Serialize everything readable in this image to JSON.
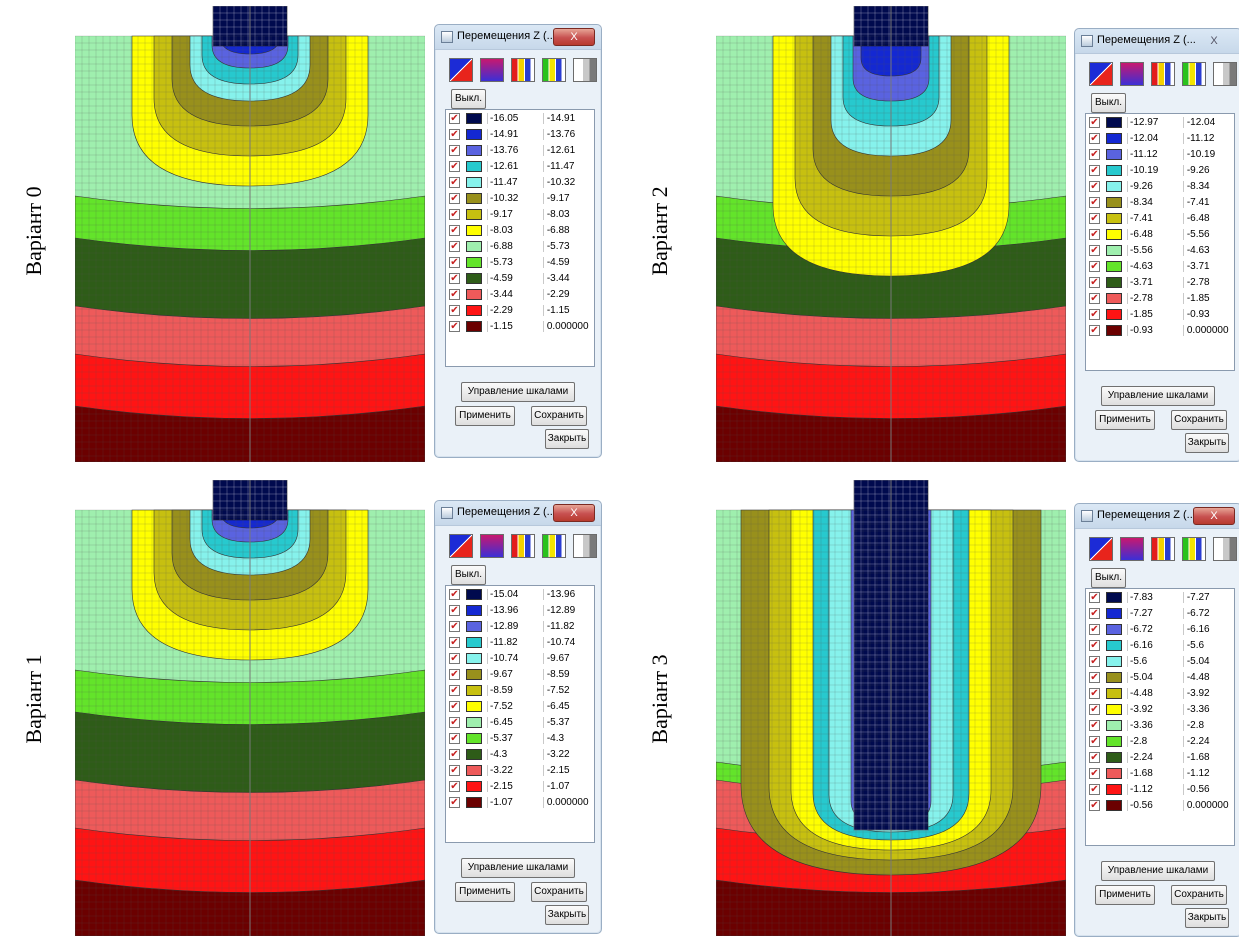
{
  "title_text": "Перемещения Z (...",
  "close_symbol": "X",
  "buttons": {
    "toggle": "Выкл.",
    "scale_control": "Управление шкалами",
    "apply": "Применить",
    "save": "Сохранить",
    "close": "Закрыть"
  },
  "colors": [
    "#000a4e",
    "#1428d2",
    "#5a63e0",
    "#27c9ce",
    "#86f2ec",
    "#98901c",
    "#c7c010",
    "#ffff00",
    "#9fefae",
    "#63e42a",
    "#2e5c18",
    "#ee5a5a",
    "#ff1414",
    "#6b0000"
  ],
  "panels": [
    {
      "label": "Варіант 0",
      "close_active": true,
      "rows": [
        [
          "-16.05",
          "-14.91"
        ],
        [
          "-14.91",
          "-13.76"
        ],
        [
          "-13.76",
          "-12.61"
        ],
        [
          "-12.61",
          "-11.47"
        ],
        [
          "-11.47",
          "-10.32"
        ],
        [
          "-10.32",
          "-9.17"
        ],
        [
          "-9.17",
          "-8.03"
        ],
        [
          "-8.03",
          "-6.88"
        ],
        [
          "-6.88",
          "-5.73"
        ],
        [
          "-5.73",
          "-4.59"
        ],
        [
          "-4.59",
          "-3.44"
        ],
        [
          "-3.44",
          "-2.29"
        ],
        [
          "-2.29",
          "-1.15"
        ],
        [
          "-1.15",
          "0.000000"
        ]
      ]
    },
    {
      "label": "Варіант 2",
      "close_active": false,
      "rows": [
        [
          "-12.97",
          "-12.04"
        ],
        [
          "-12.04",
          "-11.12"
        ],
        [
          "-11.12",
          "-10.19"
        ],
        [
          "-10.19",
          "-9.26"
        ],
        [
          "-9.26",
          "-8.34"
        ],
        [
          "-8.34",
          "-7.41"
        ],
        [
          "-7.41",
          "-6.48"
        ],
        [
          "-6.48",
          "-5.56"
        ],
        [
          "-5.56",
          "-4.63"
        ],
        [
          "-4.63",
          "-3.71"
        ],
        [
          "-3.71",
          "-2.78"
        ],
        [
          "-2.78",
          "-1.85"
        ],
        [
          "-1.85",
          "-0.93"
        ],
        [
          "-0.93",
          "0.000000"
        ]
      ]
    },
    {
      "label": "Варіант 1",
      "close_active": true,
      "rows": [
        [
          "-15.04",
          "-13.96"
        ],
        [
          "-13.96",
          "-12.89"
        ],
        [
          "-12.89",
          "-11.82"
        ],
        [
          "-11.82",
          "-10.74"
        ],
        [
          "-10.74",
          "-9.67"
        ],
        [
          "-9.67",
          "-8.59"
        ],
        [
          "-8.59",
          "-7.52"
        ],
        [
          "-7.52",
          "-6.45"
        ],
        [
          "-6.45",
          "-5.37"
        ],
        [
          "-5.37",
          "-4.3"
        ],
        [
          "-4.3",
          "-3.22"
        ],
        [
          "-3.22",
          "-2.15"
        ],
        [
          "-2.15",
          "-1.07"
        ],
        [
          "-1.07",
          "0.000000"
        ]
      ]
    },
    {
      "label": "Варіант 3",
      "close_active": true,
      "rows": [
        [
          "-7.83",
          "-7.27"
        ],
        [
          "-7.27",
          "-6.72"
        ],
        [
          "-6.72",
          "-6.16"
        ],
        [
          "-6.16",
          "-5.6"
        ],
        [
          "-5.6",
          "-5.04"
        ],
        [
          "-5.04",
          "-4.48"
        ],
        [
          "-4.48",
          "-3.92"
        ],
        [
          "-3.92",
          "-3.36"
        ],
        [
          "-3.36",
          "-2.8"
        ],
        [
          "-2.8",
          "-2.24"
        ],
        [
          "-2.24",
          "-1.68"
        ],
        [
          "-1.68",
          "-1.12"
        ],
        [
          "-1.12",
          "-0.56"
        ],
        [
          "-0.56",
          "0.000000"
        ]
      ]
    }
  ]
}
